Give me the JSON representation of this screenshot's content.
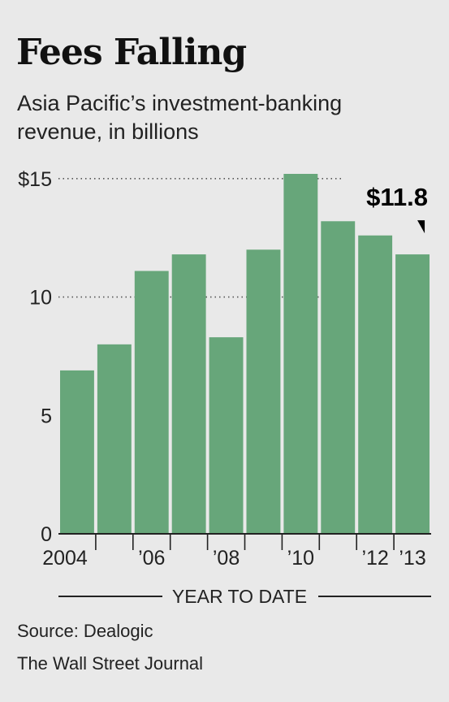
{
  "title": "Fees Falling",
  "subtitle": "Asia Pacific’s investment-banking revenue, in billions",
  "source": "Source: Dealogic",
  "publisher": "The Wall Street Journal",
  "colors": {
    "bar": "#67a67a",
    "axis": "#222222",
    "gridline": "#555555",
    "background": "#e9e9e9"
  },
  "chart_data": {
    "type": "bar",
    "title": "Fees Falling",
    "subtitle": "Asia Pacific’s investment-banking revenue, in billions",
    "categories": [
      "2004",
      "2005",
      "2006",
      "2007",
      "2008",
      "2009",
      "2010",
      "2011",
      "2012",
      "2013"
    ],
    "values": [
      6.9,
      8.0,
      11.1,
      11.8,
      8.3,
      12.0,
      15.2,
      13.2,
      12.6,
      11.8
    ],
    "x_tick_labels": [
      {
        "category": "2004",
        "label": "2004"
      },
      {
        "category": "2006",
        "label": "’06"
      },
      {
        "category": "2008",
        "label": "’08"
      },
      {
        "category": "2010",
        "label": "’10"
      },
      {
        "category": "2012",
        "label": "’12"
      },
      {
        "category": "2013",
        "label": "’13"
      }
    ],
    "y_ticks": [
      {
        "value": 0,
        "label": "0"
      },
      {
        "value": 5,
        "label": "5"
      },
      {
        "value": 10,
        "label": "10"
      },
      {
        "value": 15,
        "label": "$15"
      }
    ],
    "ylim": [
      0,
      15.2
    ],
    "grid": "dotted at 10 and 15",
    "annotation": {
      "category": "2013",
      "text": "$11.8"
    },
    "bracket_label": {
      "from_category": "2013",
      "text": "YEAR TO DATE"
    },
    "xlabel": "",
    "ylabel": ""
  }
}
